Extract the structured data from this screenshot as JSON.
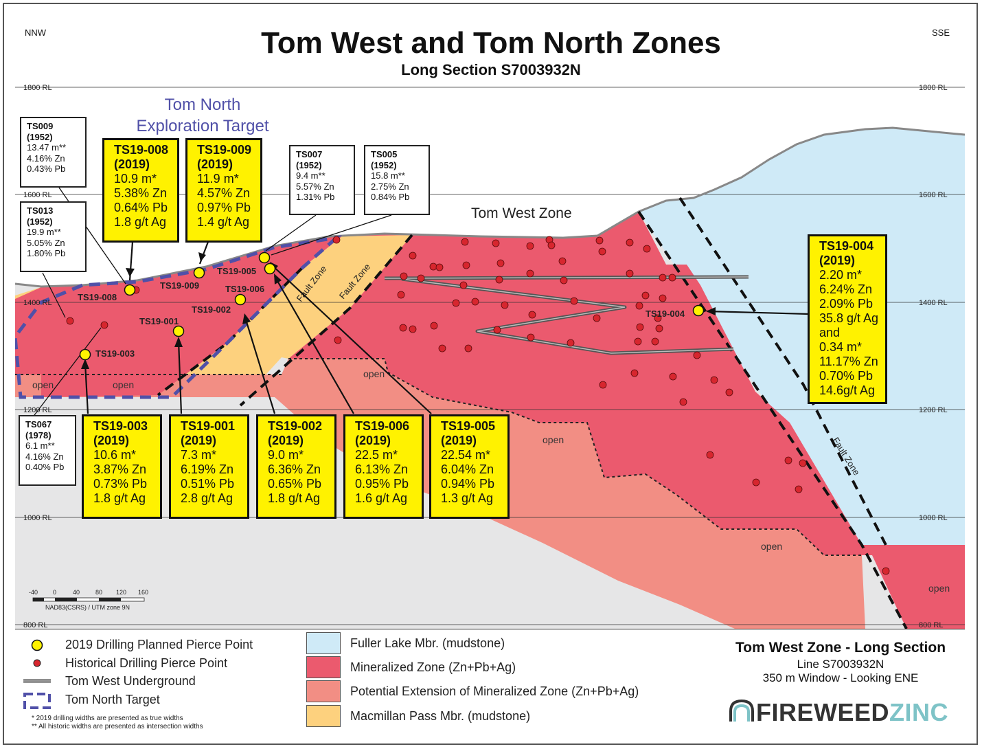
{
  "header": {
    "title": "Tom West and Tom North Zones",
    "subtitle": "Long Section S7003932N",
    "left_dir": "NNW",
    "right_dir": "SSE"
  },
  "elevations": [
    "1800 RL",
    "1600 RL",
    "1400 RL",
    "1200 RL",
    "1000 RL",
    "800 RL"
  ],
  "labels": {
    "tom_north_target": [
      "Tom North",
      "Exploration Target"
    ],
    "tom_west_zone": "Tom West Zone",
    "fault_zone": "Fault Zone",
    "open": "open"
  },
  "pierce_labels": {
    "ts19_008": "TS19-008",
    "ts19_009": "TS19-009",
    "ts19_005": "TS19-005",
    "ts19_006": "TS19-006",
    "ts19_002": "TS19-002",
    "ts19_001": "TS19-001",
    "ts19_003": "TS19-003",
    "ts19_004": "TS19-004"
  },
  "callouts_2019": [
    {
      "id": "TS19-008",
      "year": "(2019)",
      "lines": [
        "10.9 m*",
        "5.38% Zn",
        "0.64% Pb",
        "1.8 g/t Ag"
      ]
    },
    {
      "id": "TS19-009",
      "year": "(2019)",
      "lines": [
        "11.9 m*",
        "4.57% Zn",
        "0.97% Pb",
        "1.4 g/t Ag"
      ]
    },
    {
      "id": "TS19-004",
      "year": "(2019)",
      "lines": [
        "2.20 m*",
        "6.24% Zn",
        "2.09% Pb",
        "35.8 g/t Ag",
        "and",
        "0.34 m*",
        "11.17% Zn",
        "0.70% Pb",
        "14.6g/t Ag"
      ]
    },
    {
      "id": "TS19-003",
      "year": "(2019)",
      "lines": [
        "10.6 m*",
        "3.87% Zn",
        "0.73% Pb",
        "1.8 g/t Ag"
      ]
    },
    {
      "id": "TS19-001",
      "year": "(2019)",
      "lines": [
        "7.3 m*",
        "6.19% Zn",
        "0.51% Pb",
        "2.8 g/t Ag"
      ]
    },
    {
      "id": "TS19-002",
      "year": "(2019)",
      "lines": [
        "9.0 m*",
        "6.36% Zn",
        "0.65% Pb",
        "1.8 g/t Ag"
      ]
    },
    {
      "id": "TS19-006",
      "year": "(2019)",
      "lines": [
        "22.5 m*",
        "6.13% Zn",
        "0.95% Pb",
        "1.6 g/t Ag"
      ]
    },
    {
      "id": "TS19-005",
      "year": "(2019)",
      "lines": [
        "22.54 m*",
        "6.04% Zn",
        "0.94% Pb",
        "1.3 g/t Ag"
      ]
    }
  ],
  "callouts_historic": [
    {
      "id": "TS009",
      "year": "(1952)",
      "lines": [
        "13.47 m**",
        "4.16% Zn",
        "0.43% Pb"
      ]
    },
    {
      "id": "TS013",
      "year": "(1952)",
      "lines": [
        "19.9 m**",
        "5.05% Zn",
        "1.80% Pb"
      ]
    },
    {
      "id": "TS007",
      "year": "(1952)",
      "lines": [
        "9.4 m**",
        "5.57% Zn",
        "1.31% Pb"
      ]
    },
    {
      "id": "TS005",
      "year": "(1952)",
      "lines": [
        "15.8 m**",
        "2.75% Zn",
        "0.84% Pb"
      ]
    },
    {
      "id": "TS067",
      "year": "(1978)",
      "lines": [
        "6.1 m**",
        "4.16% Zn",
        "0.40% Pb"
      ]
    }
  ],
  "scale_bar": {
    "ticks": [
      "-40",
      "0",
      "40",
      "80",
      "120",
      "160"
    ],
    "caption": "NAD83(CSRS) / UTM zone 9N"
  },
  "legend": {
    "symbols": [
      {
        "label": "2019 Drilling Planned Pierce Point",
        "icon": "yellow-circle"
      },
      {
        "label": "Historical Drilling Pierce Point",
        "icon": "red-dot"
      },
      {
        "label": "Tom West Underground",
        "icon": "grey-line"
      },
      {
        "label": "Tom North Target",
        "icon": "purple-dashed"
      }
    ],
    "footnotes": [
      "* 2019 drilling widths are presented as true widths",
      "** All historic widths are presented as intersection widths"
    ],
    "units": [
      {
        "label": "Fuller Lake Mbr. (mudstone)",
        "color": "#cfeaf7"
      },
      {
        "label": "Mineralized Zone (Zn+Pb+Ag)",
        "color": "#eb5a6e"
      },
      {
        "label": "Potential Extension of Mineralized Zone (Zn+Pb+Ag)",
        "color": "#f28e84"
      },
      {
        "label": "Macmillan Pass Mbr. (mudstone)",
        "color": "#fdd17e"
      }
    ]
  },
  "info": {
    "title": "Tom West Zone - Long Section",
    "line1": "Line S7003932N",
    "line2": "350 m Window - Looking ENE",
    "logo_a": "FIREWEED",
    "logo_b": "ZINC"
  },
  "colors": {
    "fuller": "#cfeaf7",
    "mineralized": "#eb5a6e",
    "extension": "#f28e84",
    "macmillan": "#fdd17e",
    "ground": "#e6e6e7",
    "pierce_2019": "#fff200",
    "pierce_hist": "#d7262e",
    "target": "#5050a8",
    "logo_grey": "#333333",
    "logo_teal": "#7ec3c7"
  }
}
